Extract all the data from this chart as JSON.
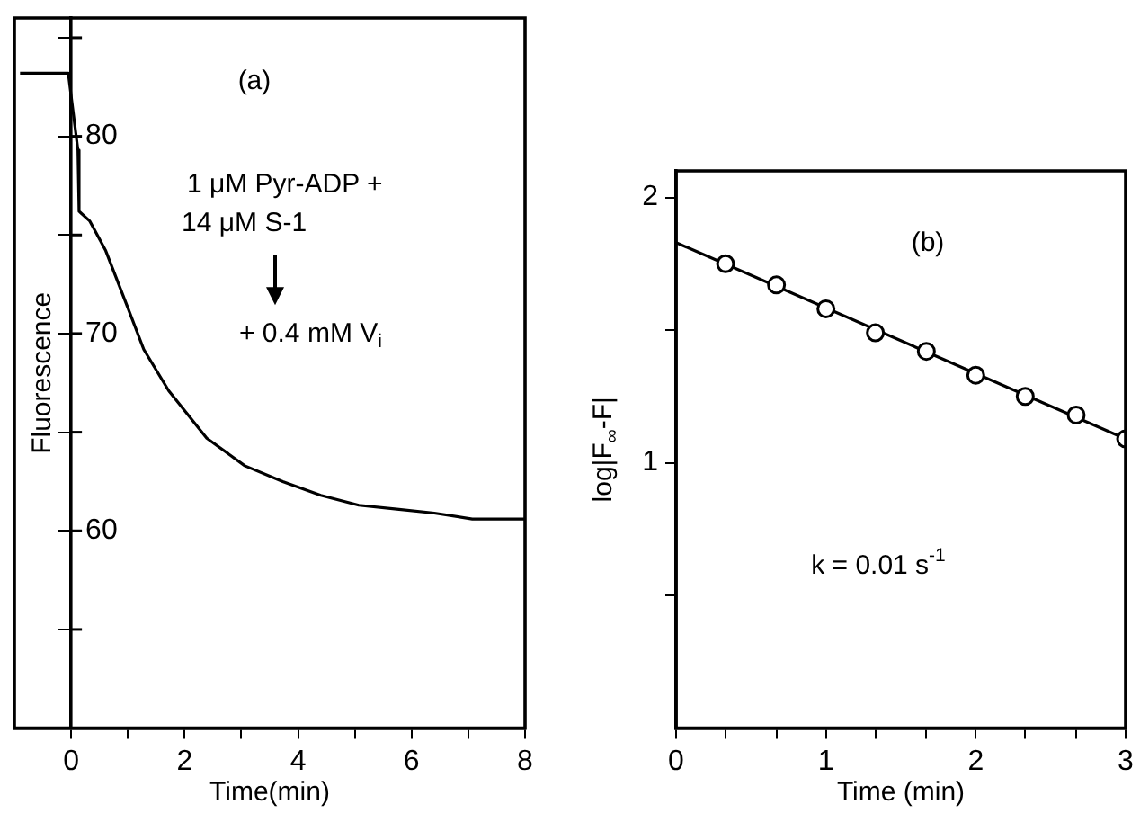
{
  "chart_data": [
    {
      "type": "line",
      "xlabel": "Time(min)",
      "ylabel": "Fluorescence",
      "annotations": [
        "(a)",
        "1 μM Pyr-ADP +",
        "14 μM S-1",
        "+ 0.4 mM V$_{i}$"
      ],
      "series": [
        {
          "color": "#000000",
          "x": [
            -0.9,
            -0.05,
            0.12,
            0.14,
            0.33,
            0.61,
            1.0,
            1.28,
            1.72,
            2.39,
            3.06,
            3.73,
            4.4,
            5.07,
            5.74,
            6.4,
            7.07,
            8.0
          ],
          "values": [
            83.2,
            83.2,
            79.3,
            76.2,
            75.7,
            74.2,
            71.3,
            69.2,
            67.1,
            64.7,
            63.3,
            62.5,
            61.8,
            61.3,
            61.1,
            60.9,
            60.6,
            60.6
          ]
        }
      ],
      "xlim": [
        -1,
        8
      ],
      "ylim": [
        50,
        86
      ],
      "xticks": [
        0,
        {
          "value": 1,
          "label": null
        },
        2,
        {
          "value": 3,
          "label": null
        },
        4,
        {
          "value": 5,
          "label": null
        },
        6,
        {
          "value": 7,
          "label": null
        },
        8
      ],
      "yticks": [
        {
          "value": 55,
          "label": null
        },
        60,
        {
          "value": 65,
          "label": null
        },
        70,
        {
          "value": 75,
          "label": null
        },
        80,
        {
          "value": 85,
          "label": null
        }
      ],
      "grid": false,
      "legend": false,
      "marker": "none"
    },
    {
      "type": "scatter",
      "xlabel": "Time (min)",
      "ylabel": "log|F$_{∞}$-F|",
      "annotations": [
        "(b)",
        "k = 0.01 s$^{-1}$"
      ],
      "series": [
        {
          "type": "line",
          "color": "#000000",
          "marker": "none",
          "x": [
            0,
            3
          ],
          "values": [
            1.83,
            1.09
          ]
        },
        {
          "color": "#000000",
          "marker": "circle",
          "x": [
            0.33,
            0.67,
            1.0,
            1.33,
            1.67,
            2.0,
            2.33,
            2.67,
            3.0
          ],
          "values": [
            1.75,
            1.67,
            1.58,
            1.49,
            1.42,
            1.33,
            1.25,
            1.18,
            1.09
          ]
        }
      ],
      "xlim": [
        0,
        3
      ],
      "ylim": [
        0,
        2.1
      ],
      "xticks": [
        0,
        {
          "value": 0.33,
          "label": null
        },
        {
          "value": 0.67,
          "label": null
        },
        1,
        {
          "value": 1.33,
          "label": null
        },
        {
          "value": 1.67,
          "label": null
        },
        2,
        {
          "value": 2.33,
          "label": null
        },
        {
          "value": 2.67,
          "label": null
        },
        3
      ],
      "yticks": [
        {
          "value": 0.5,
          "label": null
        },
        1,
        {
          "value": 1.5,
          "label": null
        },
        2
      ],
      "grid": false,
      "legend": false
    }
  ]
}
